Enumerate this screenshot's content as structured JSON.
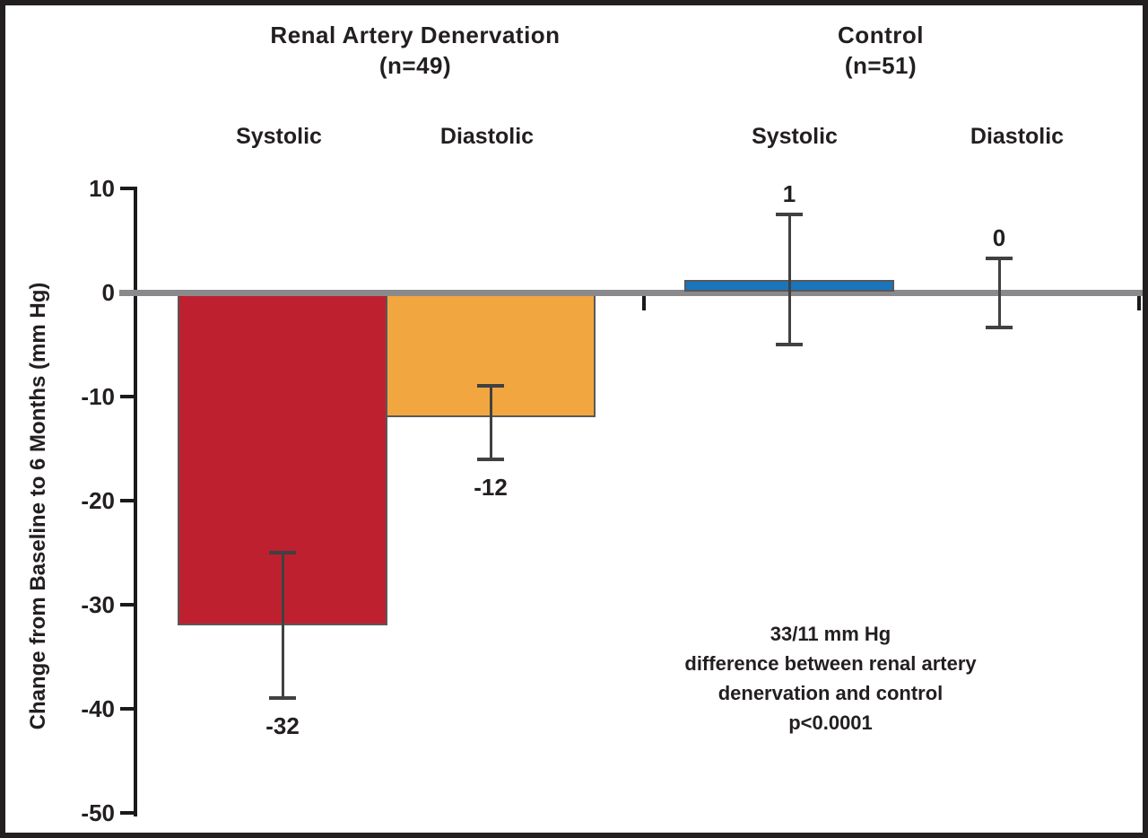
{
  "figure": {
    "groups": [
      {
        "title": "Renal Artery Denervation",
        "n_label": "(n=49)"
      },
      {
        "title": "Control",
        "n_label": "(n=51)"
      }
    ],
    "annotation": {
      "lines": [
        "33/11 mm Hg",
        "difference between renal artery",
        "denervation and control",
        "p<0.0001"
      ]
    }
  },
  "chart_data": {
    "type": "bar",
    "title": "",
    "xlabel": "",
    "ylabel": "Change from Baseline to 6 Months (mm Hg)",
    "ylim": [
      -50,
      10
    ],
    "grid": false,
    "legend": "none",
    "y_ticks": [
      {
        "label": "10",
        "value": 10
      },
      {
        "label": "0",
        "value": 0
      },
      {
        "label": "-10",
        "value": -10
      },
      {
        "label": "-20",
        "value": -20
      },
      {
        "label": "-30",
        "value": -30
      },
      {
        "label": "-40",
        "value": -40
      },
      {
        "label": "-50",
        "value": -50
      }
    ],
    "categories": [
      "Systolic",
      "Diastolic",
      "Systolic",
      "Diastolic"
    ],
    "points": [
      {
        "group": "Renal Artery Denervation (n=49)",
        "label": "Systolic",
        "value": -32,
        "value_label": "-32",
        "error_high": -25,
        "error_low": -39,
        "color": "#be2030"
      },
      {
        "group": "Renal Artery Denervation (n=49)",
        "label": "Diastolic",
        "value": -12,
        "value_label": "-12",
        "error_high": -9,
        "error_low": -16,
        "color": "#f2a640"
      },
      {
        "group": "Control (n=51)",
        "label": "Systolic",
        "value": 1,
        "value_label": "1",
        "error_high": 7.5,
        "error_low": -5,
        "color": "#1b75bb"
      },
      {
        "group": "Control (n=51)",
        "label": "Diastolic",
        "value": 0,
        "value_label": "0",
        "error_high": 3.3,
        "error_low": -3.4,
        "color": null
      }
    ]
  },
  "colors": {
    "systolic_denervation_bar": "#be2030",
    "diastolic_denervation_bar": "#f2a640",
    "control_systolic_bar": "#1b75bb",
    "zero_line": "#8a8a8d",
    "axis": "#1a1a1a",
    "error_bar": "#414042",
    "bar_outline": "#58585b",
    "frame_border": "#231f20",
    "text": "#231f20"
  }
}
